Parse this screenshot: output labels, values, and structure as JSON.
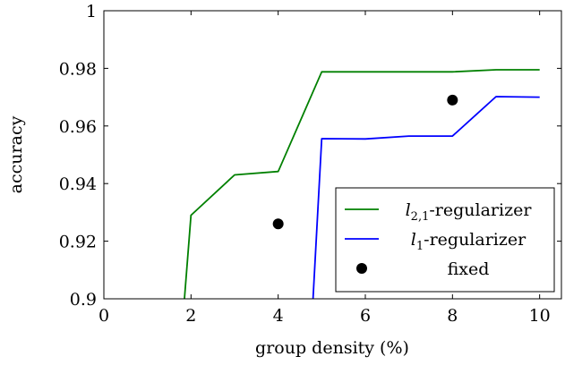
{
  "chart_data": {
    "type": "line",
    "title": "",
    "xlabel": "group density (%)",
    "ylabel": "accuracy",
    "xlim": [
      0,
      10.5
    ],
    "ylim": [
      0.9,
      1.0
    ],
    "xticks": [
      0,
      2,
      4,
      6,
      8,
      10
    ],
    "xtick_labels": [
      "0",
      "2",
      "4",
      "6",
      "8",
      "10"
    ],
    "yticks": [
      0.9,
      0.92,
      0.94,
      0.96,
      0.98,
      1.0
    ],
    "ytick_labels": [
      "0.9",
      "0.92",
      "0.94",
      "0.96",
      "0.98",
      "1"
    ],
    "grid": false,
    "legend_position": "bottom-right",
    "series": [
      {
        "name": "l2,1-regularizer",
        "name_base": "l",
        "name_sub": "2,1",
        "name_rest": "-regularizer",
        "kind": "line",
        "color": "#008000",
        "x": [
          1.85,
          2,
          3,
          4,
          5,
          6,
          7,
          8,
          9,
          10
        ],
        "y": [
          0.9,
          0.929,
          0.943,
          0.9442,
          0.9788,
          0.9788,
          0.9788,
          0.9788,
          0.9795,
          0.9795
        ]
      },
      {
        "name": "l1-regularizer",
        "name_base": "l",
        "name_sub": "1",
        "name_rest": "-regularizer",
        "kind": "line",
        "color": "#0000ff",
        "x": [
          4.8,
          5,
          6,
          7,
          8,
          9,
          10
        ],
        "y": [
          0.9,
          0.9556,
          0.9555,
          0.9565,
          0.9565,
          0.9702,
          0.97
        ]
      },
      {
        "name": "fixed",
        "name_base": "fixed",
        "name_sub": "",
        "name_rest": "",
        "kind": "scatter",
        "color": "#000000",
        "x": [
          4,
          8
        ],
        "y": [
          0.926,
          0.969
        ]
      }
    ]
  }
}
